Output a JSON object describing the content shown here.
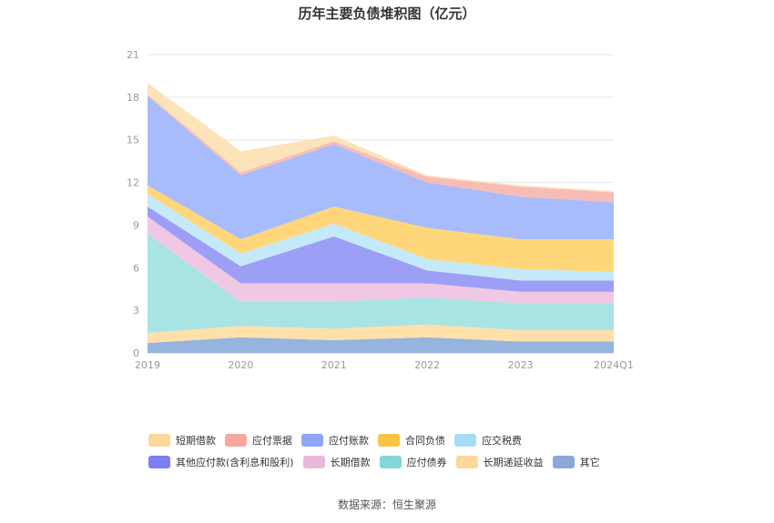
{
  "chart_data": {
    "type": "area",
    "stacked": true,
    "title": "历年主要负债堆积图（亿元）",
    "categories": [
      "2019",
      "2020",
      "2021",
      "2022",
      "2023",
      "2024Q1"
    ],
    "yticks": [
      "0",
      "3",
      "6",
      "9",
      "12",
      "15",
      "18",
      "21"
    ],
    "ylim": [
      0,
      21
    ],
    "grid": true,
    "legend_position": "bottom",
    "series": [
      {
        "name": "其它",
        "color": "#95b4de",
        "values": [
          0.7,
          1.1,
          0.9,
          1.1,
          0.8,
          0.8
        ]
      },
      {
        "name": "长期递延收益",
        "color": "#ffe0a8",
        "values": [
          0.7,
          0.8,
          0.8,
          0.9,
          0.8,
          0.8
        ]
      },
      {
        "name": "应付债券",
        "color": "#a9e4e4",
        "values": [
          7.0,
          1.7,
          1.9,
          1.9,
          1.9,
          1.9
        ]
      },
      {
        "name": "长期借款",
        "color": "#f0c8e3",
        "values": [
          1.2,
          1.3,
          1.3,
          1.0,
          0.8,
          0.8
        ]
      },
      {
        "name": "其他应付款(含利息和股利)",
        "color": "#9d9ef5",
        "values": [
          0.7,
          1.2,
          3.3,
          0.9,
          0.8,
          0.8
        ]
      },
      {
        "name": "应交税费",
        "color": "#c4e9f8",
        "values": [
          0.9,
          0.9,
          0.9,
          0.8,
          0.8,
          0.6
        ]
      },
      {
        "name": "合同负债",
        "color": "#ffd77a",
        "values": [
          0.6,
          1.0,
          1.2,
          2.2,
          2.1,
          2.3
        ]
      },
      {
        "name": "应付账款",
        "color": "#a8bcfb",
        "values": [
          6.3,
          4.5,
          4.4,
          3.2,
          3.0,
          2.6
        ]
      },
      {
        "name": "应付票据",
        "color": "#f8bcb6",
        "values": [
          0.1,
          0.2,
          0.2,
          0.4,
          0.7,
          0.7
        ]
      },
      {
        "name": "短期借款",
        "color": "#fde3ba",
        "values": [
          0.8,
          1.5,
          0.4,
          0.1,
          0.1,
          0.1
        ]
      }
    ],
    "legend": [
      {
        "name": "短期借款",
        "color": "#fdd89a"
      },
      {
        "name": "应付票据",
        "color": "#f6a89c"
      },
      {
        "name": "应付账款",
        "color": "#8ea6f8"
      },
      {
        "name": "合同负债",
        "color": "#fbc443"
      },
      {
        "name": "应交税费",
        "color": "#a5ddf8"
      },
      {
        "name": "其他应付款(含利息和股利)",
        "color": "#7e7ff0"
      },
      {
        "name": "长期借款",
        "color": "#e8b9da"
      },
      {
        "name": "应付债券",
        "color": "#83d7d6"
      },
      {
        "name": "长期递延收益",
        "color": "#fdd89a"
      },
      {
        "name": "其它",
        "color": "#8aa9d9"
      }
    ]
  },
  "source": "数据来源：恒生聚源"
}
